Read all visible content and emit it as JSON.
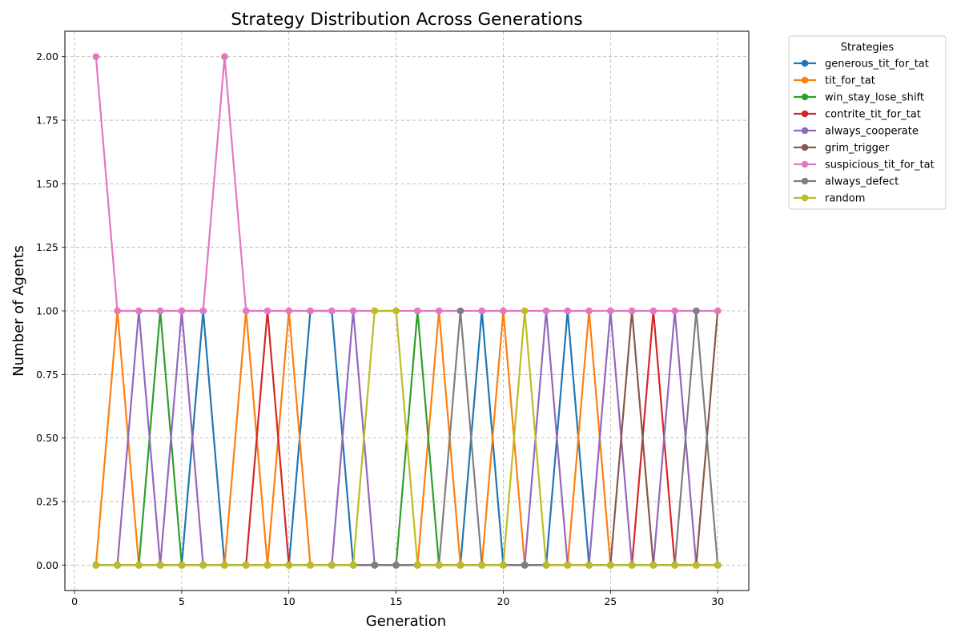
{
  "chart_data": {
    "type": "line",
    "title": "Strategy Distribution Across Generations",
    "xlabel": "Generation",
    "ylabel": "Number of Agents",
    "xlim": [
      -0.45,
      31.45
    ],
    "ylim": [
      -0.1,
      2.1
    ],
    "xticks": [
      0,
      5,
      10,
      15,
      20,
      25,
      30
    ],
    "yticks": [
      0.0,
      0.25,
      0.5,
      0.75,
      1.0,
      1.25,
      1.5,
      1.75,
      2.0
    ],
    "ytick_labels": [
      "0.00",
      "0.25",
      "0.50",
      "0.75",
      "1.00",
      "1.25",
      "1.50",
      "1.75",
      "2.00"
    ],
    "grid": true,
    "legend": {
      "title": "Strategies",
      "placement": "outside-top-right"
    },
    "x": [
      1,
      2,
      3,
      4,
      5,
      6,
      7,
      8,
      9,
      10,
      11,
      12,
      13,
      14,
      15,
      16,
      17,
      18,
      19,
      20,
      21,
      22,
      23,
      24,
      25,
      26,
      27,
      28,
      29,
      30
    ],
    "series": [
      {
        "name": "generous_tit_for_tat",
        "color": "#1f77b4",
        "values": [
          0,
          0,
          0,
          0,
          0,
          1,
          0,
          0,
          0,
          0,
          1,
          1,
          0,
          0,
          0,
          0,
          0,
          0,
          1,
          0,
          0,
          0,
          1,
          0,
          0,
          0,
          0,
          0,
          0,
          0
        ]
      },
      {
        "name": "tit_for_tat",
        "color": "#ff7f0e",
        "values": [
          0,
          1,
          0,
          0,
          0,
          0,
          0,
          1,
          0,
          1,
          0,
          0,
          0,
          0,
          0,
          0,
          1,
          0,
          0,
          1,
          0,
          0,
          0,
          1,
          0,
          0,
          0,
          0,
          0,
          0
        ]
      },
      {
        "name": "win_stay_lose_shift",
        "color": "#2ca02c",
        "values": [
          0,
          0,
          0,
          1,
          0,
          0,
          0,
          0,
          0,
          0,
          0,
          0,
          0,
          0,
          0,
          1,
          0,
          0,
          0,
          0,
          0,
          0,
          0,
          0,
          0,
          0,
          0,
          0,
          0,
          0
        ]
      },
      {
        "name": "contrite_tit_for_tat",
        "color": "#d62728",
        "values": [
          0,
          0,
          0,
          0,
          0,
          0,
          0,
          0,
          1,
          0,
          0,
          0,
          0,
          0,
          0,
          0,
          0,
          0,
          0,
          0,
          0,
          0,
          0,
          0,
          0,
          0,
          1,
          0,
          0,
          0
        ]
      },
      {
        "name": "always_cooperate",
        "color": "#9467bd",
        "values": [
          0,
          0,
          1,
          0,
          1,
          0,
          0,
          0,
          0,
          0,
          0,
          0,
          1,
          0,
          0,
          0,
          0,
          0,
          0,
          0,
          0,
          1,
          0,
          0,
          1,
          0,
          0,
          1,
          0,
          0
        ]
      },
      {
        "name": "grim_trigger",
        "color": "#8c564b",
        "values": [
          0,
          0,
          0,
          0,
          0,
          0,
          0,
          0,
          0,
          0,
          0,
          0,
          0,
          0,
          0,
          0,
          0,
          0,
          0,
          0,
          0,
          0,
          0,
          0,
          0,
          1,
          0,
          0,
          0,
          1
        ]
      },
      {
        "name": "suspicious_tit_for_tat",
        "color": "#e377c2",
        "values": [
          2,
          1,
          1,
          1,
          1,
          1,
          2,
          1,
          1,
          1,
          1,
          1,
          1,
          1,
          1,
          1,
          1,
          1,
          1,
          1,
          1,
          1,
          1,
          1,
          1,
          1,
          1,
          1,
          1,
          1
        ]
      },
      {
        "name": "always_defect",
        "color": "#7f7f7f",
        "values": [
          0,
          0,
          0,
          0,
          0,
          0,
          0,
          0,
          0,
          0,
          0,
          0,
          0,
          0,
          0,
          0,
          0,
          1,
          0,
          0,
          0,
          0,
          0,
          0,
          0,
          0,
          0,
          0,
          1,
          0
        ]
      },
      {
        "name": "random",
        "color": "#bcbd22",
        "values": [
          0,
          0,
          0,
          0,
          0,
          0,
          0,
          0,
          0,
          0,
          0,
          0,
          0,
          1,
          1,
          0,
          0,
          0,
          0,
          0,
          1,
          0,
          0,
          0,
          0,
          0,
          0,
          0,
          0,
          0
        ]
      }
    ]
  }
}
